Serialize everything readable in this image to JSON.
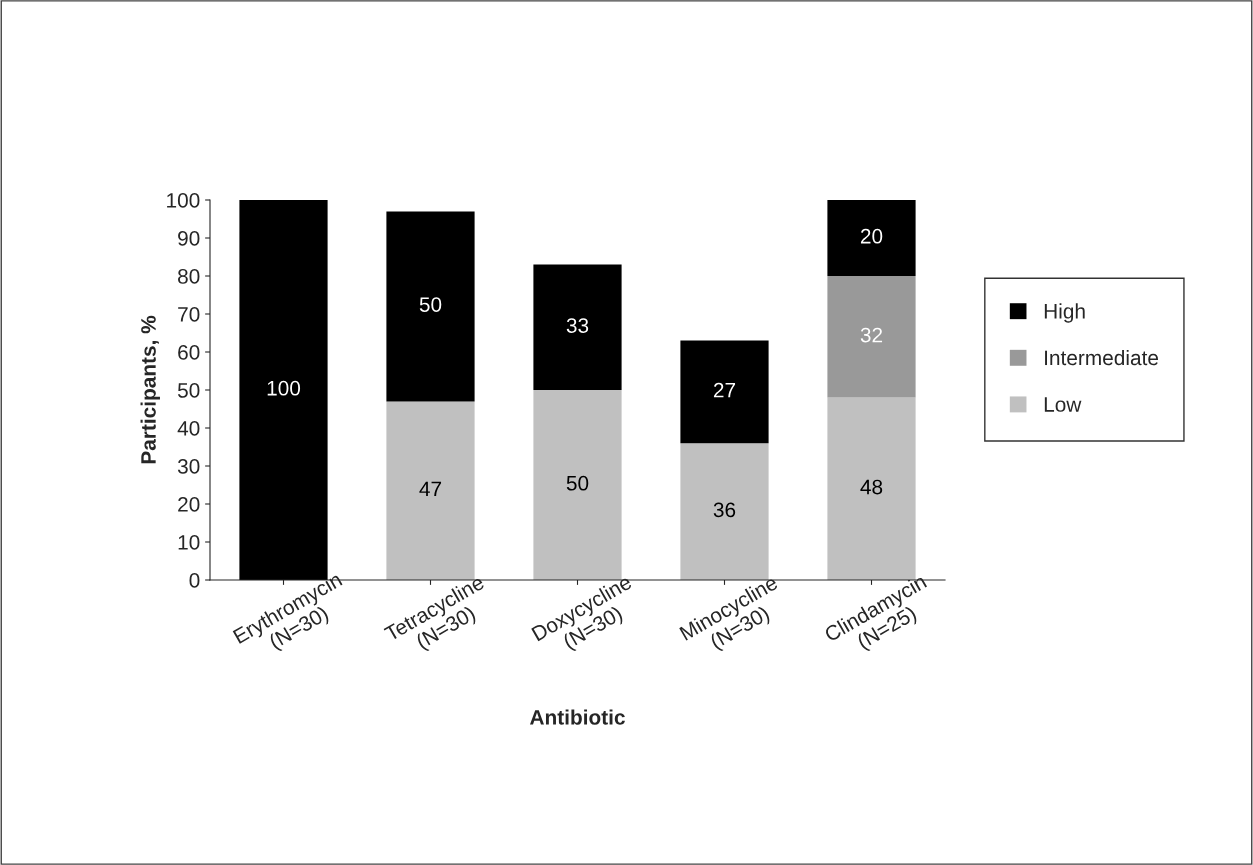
{
  "chart_data": {
    "type": "bar",
    "stacked": true,
    "categories": [
      "Erythromycin\n(N=30)",
      "Tetracycline\n(N=30)",
      "Doxycycline\n(N=30)",
      "Minocycline\n(N=30)",
      "Clindamycin\n(N=25)"
    ],
    "series": [
      {
        "name": "Low",
        "color": "#c0c0c0",
        "values": [
          0,
          47,
          50,
          36,
          48
        ],
        "value_labels": [
          null,
          "47",
          "50",
          "36",
          "48"
        ]
      },
      {
        "name": "Intermediate",
        "color": "#999999",
        "values": [
          0,
          0,
          0,
          0,
          32
        ],
        "value_labels": [
          null,
          null,
          null,
          null,
          "32"
        ]
      },
      {
        "name": "High",
        "color": "#000000",
        "values": [
          100,
          50,
          33,
          27,
          20
        ],
        "value_labels": [
          "100",
          "50",
          "33",
          "27",
          "20"
        ]
      }
    ],
    "xlabel": "Antibiotic",
    "ylabel": "Participants, %",
    "ylim": [
      0,
      100
    ],
    "yticks": [
      0,
      10,
      20,
      30,
      40,
      50,
      60,
      70,
      80,
      90,
      100
    ],
    "grid": false,
    "legend": "right"
  }
}
